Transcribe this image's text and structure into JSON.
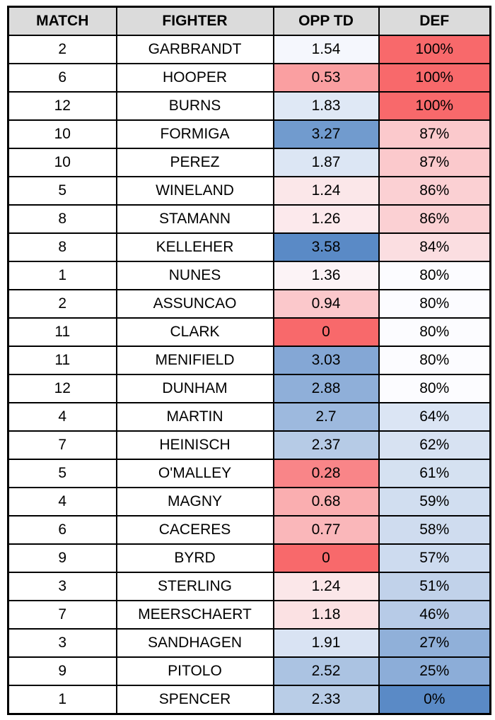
{
  "table": {
    "headers": [
      "MATCH",
      "FIGHTER",
      "OPP TD",
      "DEF"
    ],
    "header_bg": "#DBDBDB",
    "border_color": "#000000",
    "rows": [
      {
        "match": "2",
        "fighter": "GARBRANDT",
        "opp_td": "1.54",
        "def": "100%",
        "opp_td_color": "#F5F7FD",
        "def_color": "#F8696B"
      },
      {
        "match": "6",
        "fighter": "HOOPER",
        "opp_td": "0.53",
        "def": "100%",
        "opp_td_color": "#FA9FA1",
        "def_color": "#F8696B"
      },
      {
        "match": "12",
        "fighter": "BURNS",
        "opp_td": "1.83",
        "def": "100%",
        "opp_td_color": "#DFE8F5",
        "def_color": "#F8696B"
      },
      {
        "match": "10",
        "fighter": "FORMIGA",
        "opp_td": "3.27",
        "def": "87%",
        "opp_td_color": "#719BCE",
        "def_color": "#FBC9CC"
      },
      {
        "match": "10",
        "fighter": "PEREZ",
        "opp_td": "1.87",
        "def": "87%",
        "opp_td_color": "#DCE6F4",
        "def_color": "#FBC9CC"
      },
      {
        "match": "5",
        "fighter": "WINELAND",
        "opp_td": "1.24",
        "def": "86%",
        "opp_td_color": "#FBE7E9",
        "def_color": "#FBD0D3"
      },
      {
        "match": "8",
        "fighter": "STAMANN",
        "opp_td": "1.26",
        "def": "86%",
        "opp_td_color": "#FCE9EC",
        "def_color": "#FBD0D3"
      },
      {
        "match": "8",
        "fighter": "KELLEHER",
        "opp_td": "3.58",
        "def": "84%",
        "opp_td_color": "#5A8AC6",
        "def_color": "#FBDEE1"
      },
      {
        "match": "1",
        "fighter": "NUNES",
        "opp_td": "1.36",
        "def": "80%",
        "opp_td_color": "#FCF3F6",
        "def_color": "#FCFCFF"
      },
      {
        "match": "2",
        "fighter": "ASSUNCAO",
        "opp_td": "0.94",
        "def": "80%",
        "opp_td_color": "#FBC8CB",
        "def_color": "#FCFCFF"
      },
      {
        "match": "11",
        "fighter": "CLARK",
        "opp_td": "0",
        "def": "80%",
        "opp_td_color": "#F8696B",
        "def_color": "#FCFCFF"
      },
      {
        "match": "11",
        "fighter": "MENIFIELD",
        "opp_td": "3.03",
        "def": "80%",
        "opp_td_color": "#84A7D5",
        "def_color": "#FCFCFF"
      },
      {
        "match": "12",
        "fighter": "DUNHAM",
        "opp_td": "2.88",
        "def": "80%",
        "opp_td_color": "#8FAFD9",
        "def_color": "#FCFCFF"
      },
      {
        "match": "4",
        "fighter": "MARTIN",
        "opp_td": "2.7",
        "def": "64%",
        "opp_td_color": "#9DB9DE",
        "def_color": "#DBE5F4"
      },
      {
        "match": "7",
        "fighter": "HEINISCH",
        "opp_td": "2.37",
        "def": "62%",
        "opp_td_color": "#B6CBE6",
        "def_color": "#D7E2F2"
      },
      {
        "match": "5",
        "fighter": "O'MALLEY",
        "opp_td": "0.28",
        "def": "61%",
        "opp_td_color": "#F98588",
        "def_color": "#D5E1F1"
      },
      {
        "match": "4",
        "fighter": "MAGNY",
        "opp_td": "0.68",
        "def": "59%",
        "opp_td_color": "#FAAEB0",
        "def_color": "#D1DEF0"
      },
      {
        "match": "6",
        "fighter": "CACERES",
        "opp_td": "0.77",
        "def": "58%",
        "opp_td_color": "#FAB7BA",
        "def_color": "#CFDCEF"
      },
      {
        "match": "9",
        "fighter": "BYRD",
        "opp_td": "0",
        "def": "57%",
        "opp_td_color": "#F8696B",
        "def_color": "#CDDBEF"
      },
      {
        "match": "3",
        "fighter": "STERLING",
        "opp_td": "1.24",
        "def": "51%",
        "opp_td_color": "#FBE7E9",
        "def_color": "#C1D2EA"
      },
      {
        "match": "7",
        "fighter": "MEERSCHAERT",
        "opp_td": "1.18",
        "def": "46%",
        "opp_td_color": "#FBE1E3",
        "def_color": "#B7CBE7"
      },
      {
        "match": "3",
        "fighter": "SANDHAGEN",
        "opp_td": "1.91",
        "def": "27%",
        "opp_td_color": "#D9E3F3",
        "def_color": "#90B0D9"
      },
      {
        "match": "9",
        "fighter": "PITOLO",
        "opp_td": "2.52",
        "def": "25%",
        "opp_td_color": "#ABC3E2",
        "def_color": "#8CADD8"
      },
      {
        "match": "1",
        "fighter": "SPENCER",
        "opp_td": "2.33",
        "def": "0%",
        "opp_td_color": "#B9CDE7",
        "def_color": "#5A8AC6"
      }
    ]
  },
  "chart_data": {
    "type": "table",
    "title": "",
    "columns": [
      "MATCH",
      "FIGHTER",
      "OPP TD",
      "DEF"
    ],
    "rows": [
      [
        2,
        "GARBRANDT",
        1.54,
        "100%"
      ],
      [
        6,
        "HOOPER",
        0.53,
        "100%"
      ],
      [
        12,
        "BURNS",
        1.83,
        "100%"
      ],
      [
        10,
        "FORMIGA",
        3.27,
        "87%"
      ],
      [
        10,
        "PEREZ",
        1.87,
        "87%"
      ],
      [
        5,
        "WINELAND",
        1.24,
        "86%"
      ],
      [
        8,
        "STAMANN",
        1.26,
        "86%"
      ],
      [
        8,
        "KELLEHER",
        3.58,
        "84%"
      ],
      [
        1,
        "NUNES",
        1.36,
        "80%"
      ],
      [
        2,
        "ASSUNCAO",
        0.94,
        "80%"
      ],
      [
        11,
        "CLARK",
        0,
        "80%"
      ],
      [
        11,
        "MENIFIELD",
        3.03,
        "80%"
      ],
      [
        12,
        "DUNHAM",
        2.88,
        "80%"
      ],
      [
        4,
        "MARTIN",
        2.7,
        "64%"
      ],
      [
        7,
        "HEINISCH",
        2.37,
        "62%"
      ],
      [
        5,
        "O'MALLEY",
        0.28,
        "61%"
      ],
      [
        4,
        "MAGNY",
        0.68,
        "59%"
      ],
      [
        6,
        "CACERES",
        0.77,
        "58%"
      ],
      [
        9,
        "BYRD",
        0,
        "57%"
      ],
      [
        3,
        "STERLING",
        1.24,
        "51%"
      ],
      [
        7,
        "MEERSCHAERT",
        1.18,
        "46%"
      ],
      [
        3,
        "SANDHAGEN",
        1.91,
        "27%"
      ],
      [
        9,
        "PITOLO",
        2.52,
        "25%"
      ],
      [
        1,
        "SPENCER",
        2.33,
        "0%"
      ]
    ],
    "conditional_format": {
      "scale": "red-white-blue",
      "red": "#F8696B",
      "white": "#FCFCFF",
      "blue": "#5A8AC6",
      "opp_td_rule": "low values red, median white, high values blue",
      "def_rule": "high values red, median white, low values blue"
    }
  }
}
